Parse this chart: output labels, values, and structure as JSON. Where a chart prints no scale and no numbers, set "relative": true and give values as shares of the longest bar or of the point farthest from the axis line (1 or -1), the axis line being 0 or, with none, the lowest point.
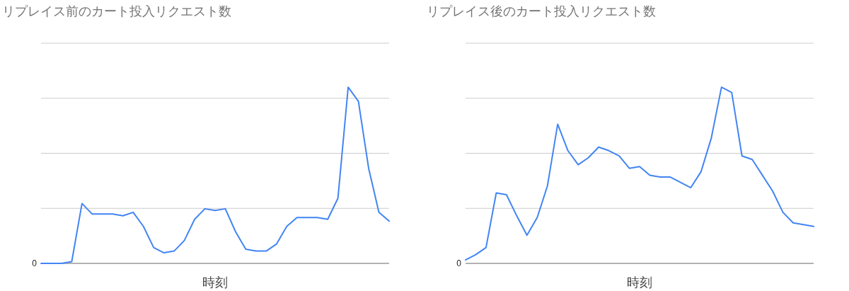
{
  "chart_data": [
    {
      "type": "line",
      "title": "リプレイス前のカート投入リクエスト数",
      "xlabel": "時刻",
      "relative": true,
      "grid": "y",
      "annotations": [
        "0"
      ],
      "categories": [
        null,
        null,
        null,
        null,
        null,
        null,
        null,
        null,
        null,
        null,
        null,
        null,
        null,
        null,
        null,
        null,
        null,
        null,
        null,
        null,
        null,
        null,
        null,
        null,
        null,
        null,
        null,
        null,
        null,
        null,
        null,
        null,
        null,
        null,
        null
      ],
      "series": [
        {
          "color": "#4285f4",
          "values": [
            0,
            0,
            0,
            0.01,
            0.34,
            0.28,
            0.28,
            0.28,
            0.27,
            0.29,
            0.21,
            0.09,
            0.06,
            0.07,
            0.13,
            0.25,
            0.31,
            0.3,
            0.31,
            0.18,
            0.08,
            0.07,
            0.07,
            0.11,
            0.21,
            0.26,
            0.26,
            0.26,
            0.25,
            0.37,
            1.0,
            0.92,
            0.54,
            0.29,
            0.24
          ]
        }
      ]
    },
    {
      "type": "line",
      "title": "リプレイス後のカート投入リクエスト数",
      "xlabel": "時刻",
      "relative": true,
      "grid": "y",
      "annotations": [
        "0"
      ],
      "categories": [
        null,
        null,
        null,
        null,
        null,
        null,
        null,
        null,
        null,
        null,
        null,
        null,
        null,
        null,
        null,
        null,
        null,
        null,
        null,
        null,
        null,
        null,
        null,
        null,
        null,
        null,
        null,
        null,
        null,
        null,
        null,
        null,
        null,
        null,
        null
      ],
      "series": [
        {
          "color": "#4285f4",
          "values": [
            0.02,
            0.05,
            0.09,
            0.4,
            0.39,
            0.27,
            0.16,
            0.26,
            0.44,
            0.79,
            0.64,
            0.56,
            0.6,
            0.66,
            0.64,
            0.61,
            0.54,
            0.55,
            0.5,
            0.49,
            0.49,
            0.46,
            0.43,
            0.52,
            0.71,
            1.0,
            0.97,
            0.61,
            0.59,
            0.5,
            0.41,
            0.29,
            0.23,
            0.22,
            0.21
          ]
        }
      ]
    }
  ]
}
